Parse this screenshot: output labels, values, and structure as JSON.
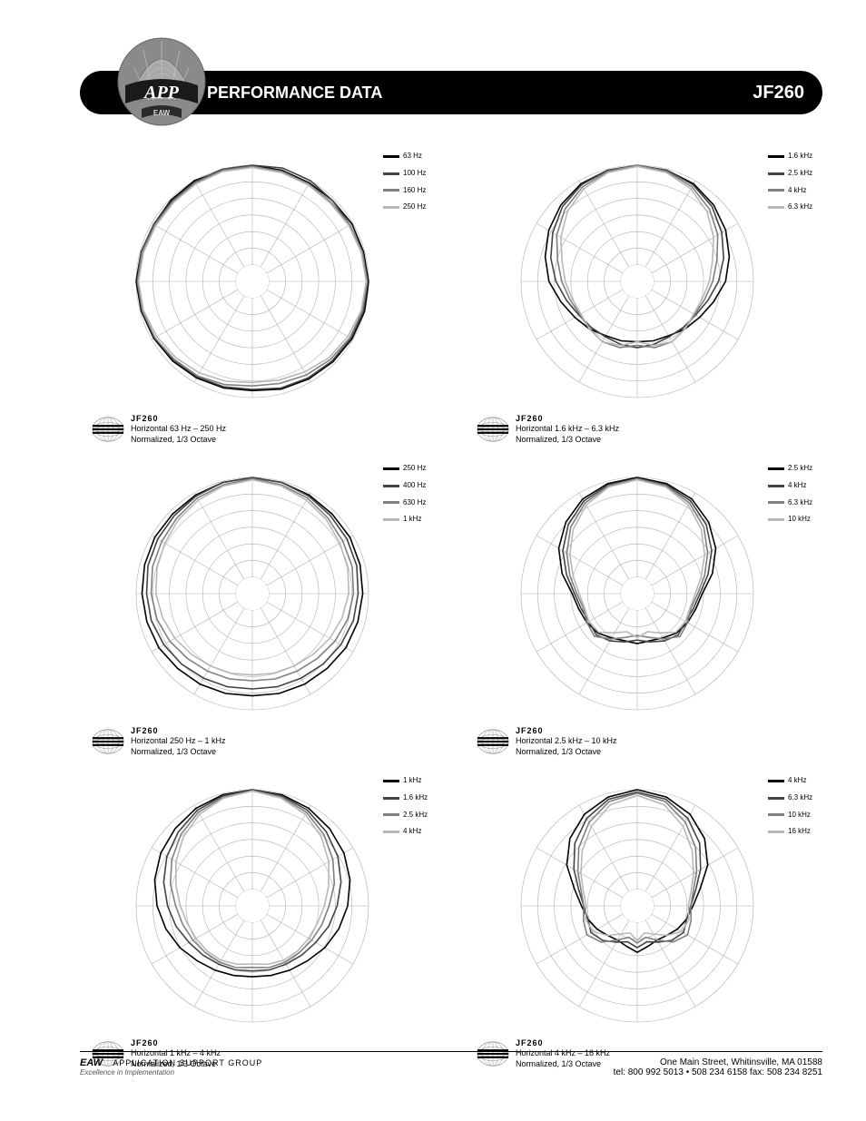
{
  "header": {
    "title": "PERFORMANCE DATA",
    "model": "JF260"
  },
  "logo": {
    "top_label": "APP",
    "bottom_label": "EAW",
    "bg_color": "#8a8a8a",
    "grid_color": "#c5c5c5",
    "band_color": "#1a1a1a",
    "text_color": "#ffffff"
  },
  "globe": {
    "fill": "#c9c9c9",
    "line": "#888888"
  },
  "legend_colors": {
    "c1": "#000000",
    "c2": "#444444",
    "c3": "#808080",
    "c4": "#b8b8b8"
  },
  "chart_style": {
    "background_color": "#ffffff",
    "grid_color": "#b0b0b0",
    "rings": 7,
    "spokes": 12,
    "outer_radius": 128,
    "line_width": 1.6
  },
  "charts": [
    {
      "foot_line1": "JF260",
      "foot_line2": "Horizontal 63 Hz – 250 Hz",
      "foot_line3": "Normalized, 1/3 Octave",
      "legend": [
        "63 Hz",
        "100 Hz",
        "160 Hz",
        "250 Hz"
      ],
      "series": [
        {
          "color_key": "c1",
          "r": [
            1.0,
            0.99,
            0.98,
            0.98,
            0.99,
            0.99,
            1.0,
            1.0,
            0.99,
            0.98,
            0.97,
            0.96,
            0.94,
            0.95,
            0.96,
            0.97,
            0.98,
            0.99,
            1.0,
            0.99,
            0.98,
            0.99,
            1.0,
            0.99
          ]
        },
        {
          "color_key": "c2",
          "r": [
            1.0,
            1.01,
            1.0,
            0.98,
            0.97,
            0.98,
            0.99,
            0.99,
            0.98,
            0.97,
            0.96,
            0.95,
            0.93,
            0.94,
            0.95,
            0.96,
            0.97,
            0.98,
            0.99,
            0.99,
            0.98,
            0.98,
            0.99,
            1.0
          ]
        },
        {
          "color_key": "c3",
          "r": [
            0.99,
            0.98,
            0.97,
            0.96,
            0.97,
            0.98,
            0.99,
            0.98,
            0.97,
            0.95,
            0.93,
            0.91,
            0.9,
            0.92,
            0.94,
            0.95,
            0.97,
            0.98,
            0.99,
            0.98,
            0.97,
            0.97,
            0.98,
            0.99
          ]
        },
        {
          "color_key": "c4",
          "r": [
            0.98,
            0.97,
            0.96,
            0.95,
            0.96,
            0.97,
            0.98,
            0.97,
            0.95,
            0.93,
            0.9,
            0.88,
            0.87,
            0.89,
            0.91,
            0.93,
            0.95,
            0.97,
            0.98,
            0.97,
            0.96,
            0.96,
            0.97,
            0.98
          ]
        }
      ]
    },
    {
      "foot_line1": "JF260",
      "foot_line2": "Horizontal 1.6 kHz – 6.3 kHz",
      "foot_line3": "Normalized, 1/3 Octave",
      "legend": [
        "1.6 kHz",
        "2.5 kHz",
        "4 kHz",
        "6.3 kHz"
      ],
      "series": [
        {
          "color_key": "c1",
          "r": [
            1.0,
            0.99,
            0.97,
            0.93,
            0.88,
            0.82,
            0.76,
            0.68,
            0.62,
            0.58,
            0.54,
            0.53,
            0.52,
            0.53,
            0.54,
            0.58,
            0.62,
            0.68,
            0.76,
            0.82,
            0.88,
            0.93,
            0.97,
            0.99
          ]
        },
        {
          "color_key": "c2",
          "r": [
            1.0,
            0.99,
            0.96,
            0.91,
            0.84,
            0.77,
            0.7,
            0.63,
            0.58,
            0.56,
            0.55,
            0.56,
            0.57,
            0.56,
            0.55,
            0.56,
            0.58,
            0.63,
            0.7,
            0.77,
            0.84,
            0.91,
            0.96,
            0.99
          ]
        },
        {
          "color_key": "c3",
          "r": [
            1.0,
            0.98,
            0.94,
            0.88,
            0.8,
            0.71,
            0.65,
            0.6,
            0.57,
            0.58,
            0.6,
            0.59,
            0.55,
            0.59,
            0.6,
            0.58,
            0.57,
            0.6,
            0.65,
            0.71,
            0.8,
            0.88,
            0.94,
            0.98
          ]
        },
        {
          "color_key": "c4",
          "r": [
            0.99,
            0.97,
            0.92,
            0.85,
            0.76,
            0.67,
            0.62,
            0.58,
            0.56,
            0.58,
            0.6,
            0.57,
            0.52,
            0.57,
            0.6,
            0.58,
            0.56,
            0.58,
            0.62,
            0.67,
            0.76,
            0.85,
            0.92,
            0.97
          ]
        }
      ]
    },
    {
      "foot_line1": "JF260",
      "foot_line2": "Horizontal 250 Hz – 1 kHz",
      "foot_line3": "Normalized, 1/3 Octave",
      "legend": [
        "250 Hz",
        "400 Hz",
        "630 Hz",
        "1 kHz"
      ],
      "series": [
        {
          "color_key": "c1",
          "r": [
            1.0,
            0.99,
            0.98,
            0.97,
            0.97,
            0.96,
            0.95,
            0.94,
            0.93,
            0.91,
            0.9,
            0.89,
            0.88,
            0.89,
            0.9,
            0.91,
            0.93,
            0.94,
            0.95,
            0.96,
            0.97,
            0.97,
            0.98,
            0.99
          ]
        },
        {
          "color_key": "c2",
          "r": [
            1.0,
            0.99,
            0.97,
            0.95,
            0.94,
            0.93,
            0.91,
            0.9,
            0.88,
            0.86,
            0.84,
            0.83,
            0.82,
            0.83,
            0.84,
            0.86,
            0.88,
            0.9,
            0.91,
            0.93,
            0.94,
            0.95,
            0.97,
            0.99
          ]
        },
        {
          "color_key": "c3",
          "r": [
            0.99,
            0.97,
            0.95,
            0.92,
            0.9,
            0.89,
            0.87,
            0.85,
            0.82,
            0.79,
            0.77,
            0.76,
            0.75,
            0.76,
            0.77,
            0.79,
            0.82,
            0.85,
            0.87,
            0.89,
            0.9,
            0.92,
            0.95,
            0.97
          ]
        },
        {
          "color_key": "c4",
          "r": [
            0.98,
            0.96,
            0.93,
            0.9,
            0.87,
            0.85,
            0.83,
            0.8,
            0.77,
            0.74,
            0.72,
            0.71,
            0.7,
            0.71,
            0.72,
            0.74,
            0.77,
            0.8,
            0.83,
            0.85,
            0.87,
            0.9,
            0.93,
            0.96
          ]
        }
      ]
    },
    {
      "foot_line1": "JF260",
      "foot_line2": "Horizontal 2.5 kHz – 10 kHz",
      "foot_line3": "Normalized, 1/3 Octave",
      "legend": [
        "2.5 kHz",
        "4 kHz",
        "6.3 kHz",
        "10 kHz"
      ],
      "series": [
        {
          "color_key": "c1",
          "r": [
            1.0,
            0.98,
            0.94,
            0.87,
            0.78,
            0.67,
            0.56,
            0.52,
            0.5,
            0.48,
            0.44,
            0.42,
            0.43,
            0.42,
            0.44,
            0.48,
            0.5,
            0.52,
            0.56,
            0.67,
            0.78,
            0.87,
            0.94,
            0.98
          ]
        },
        {
          "color_key": "c2",
          "r": [
            0.99,
            0.97,
            0.92,
            0.84,
            0.74,
            0.63,
            0.54,
            0.5,
            0.48,
            0.5,
            0.47,
            0.43,
            0.4,
            0.43,
            0.47,
            0.5,
            0.48,
            0.5,
            0.54,
            0.63,
            0.74,
            0.84,
            0.92,
            0.97
          ]
        },
        {
          "color_key": "c3",
          "r": [
            0.99,
            0.96,
            0.9,
            0.81,
            0.7,
            0.6,
            0.52,
            0.48,
            0.5,
            0.52,
            0.45,
            0.39,
            0.36,
            0.39,
            0.45,
            0.52,
            0.5,
            0.48,
            0.52,
            0.6,
            0.7,
            0.81,
            0.9,
            0.96
          ]
        },
        {
          "color_key": "c4",
          "r": [
            0.98,
            0.95,
            0.88,
            0.78,
            0.67,
            0.57,
            0.5,
            0.47,
            0.48,
            0.47,
            0.39,
            0.34,
            0.38,
            0.34,
            0.39,
            0.47,
            0.48,
            0.47,
            0.5,
            0.57,
            0.67,
            0.78,
            0.88,
            0.95
          ]
        }
      ]
    },
    {
      "foot_line1": "JF260",
      "foot_line2": "Horizontal 1 kHz – 4 kHz",
      "foot_line3": "Normalized, 1/3 Octave",
      "legend": [
        "1 kHz",
        "1.6 kHz",
        "2.5 kHz",
        "4 kHz"
      ],
      "series": [
        {
          "color_key": "c1",
          "r": [
            1.0,
            0.99,
            0.97,
            0.94,
            0.91,
            0.87,
            0.82,
            0.77,
            0.72,
            0.67,
            0.64,
            0.62,
            0.61,
            0.62,
            0.64,
            0.67,
            0.72,
            0.77,
            0.82,
            0.87,
            0.91,
            0.94,
            0.97,
            0.99
          ]
        },
        {
          "color_key": "c2",
          "r": [
            1.0,
            0.98,
            0.95,
            0.9,
            0.85,
            0.79,
            0.73,
            0.68,
            0.63,
            0.6,
            0.58,
            0.57,
            0.56,
            0.57,
            0.58,
            0.6,
            0.63,
            0.68,
            0.73,
            0.79,
            0.85,
            0.9,
            0.95,
            0.98
          ]
        },
        {
          "color_key": "c3",
          "r": [
            0.99,
            0.97,
            0.93,
            0.87,
            0.8,
            0.73,
            0.66,
            0.62,
            0.59,
            0.57,
            0.56,
            0.55,
            0.53,
            0.55,
            0.56,
            0.57,
            0.59,
            0.62,
            0.66,
            0.73,
            0.8,
            0.87,
            0.93,
            0.97
          ]
        },
        {
          "color_key": "c4",
          "r": [
            0.99,
            0.96,
            0.91,
            0.84,
            0.76,
            0.68,
            0.62,
            0.58,
            0.56,
            0.55,
            0.54,
            0.52,
            0.5,
            0.52,
            0.54,
            0.55,
            0.56,
            0.58,
            0.62,
            0.68,
            0.76,
            0.84,
            0.91,
            0.96
          ]
        }
      ]
    },
    {
      "foot_line1": "JF260",
      "foot_line2": "Horizontal 4 kHz – 16 kHz",
      "foot_line3": "Normalized, 1/3 Octave",
      "legend": [
        "4 kHz",
        "6.3 kHz",
        "10 kHz",
        "16 kHz"
      ],
      "series": [
        {
          "color_key": "c1",
          "r": [
            1.0,
            0.97,
            0.91,
            0.82,
            0.7,
            0.56,
            0.48,
            0.44,
            0.4,
            0.36,
            0.34,
            0.36,
            0.4,
            0.36,
            0.34,
            0.36,
            0.4,
            0.44,
            0.48,
            0.56,
            0.7,
            0.82,
            0.91,
            0.97
          ]
        },
        {
          "color_key": "c2",
          "r": [
            0.98,
            0.95,
            0.87,
            0.76,
            0.63,
            0.52,
            0.46,
            0.44,
            0.46,
            0.42,
            0.36,
            0.32,
            0.36,
            0.32,
            0.36,
            0.42,
            0.46,
            0.44,
            0.46,
            0.52,
            0.63,
            0.76,
            0.87,
            0.95
          ]
        },
        {
          "color_key": "c3",
          "r": [
            0.97,
            0.93,
            0.83,
            0.71,
            0.59,
            0.5,
            0.46,
            0.48,
            0.5,
            0.44,
            0.34,
            0.28,
            0.32,
            0.28,
            0.34,
            0.44,
            0.5,
            0.48,
            0.46,
            0.5,
            0.59,
            0.71,
            0.83,
            0.93
          ]
        },
        {
          "color_key": "c4",
          "r": [
            0.95,
            0.9,
            0.79,
            0.67,
            0.56,
            0.48,
            0.44,
            0.46,
            0.44,
            0.36,
            0.28,
            0.24,
            0.3,
            0.24,
            0.28,
            0.36,
            0.44,
            0.46,
            0.44,
            0.48,
            0.56,
            0.67,
            0.79,
            0.9
          ]
        }
      ]
    }
  ],
  "footer": {
    "brand_a": "EAW",
    "brand_b": "APPLICATION SUPPORT GROUP",
    "right_a": "One Main Street, Whitinsville, MA 01588",
    "right_b": "tel: 800 992 5013 • 508 234 6158  fax: 508 234 8251",
    "subline": "Excellence in Implementation"
  }
}
